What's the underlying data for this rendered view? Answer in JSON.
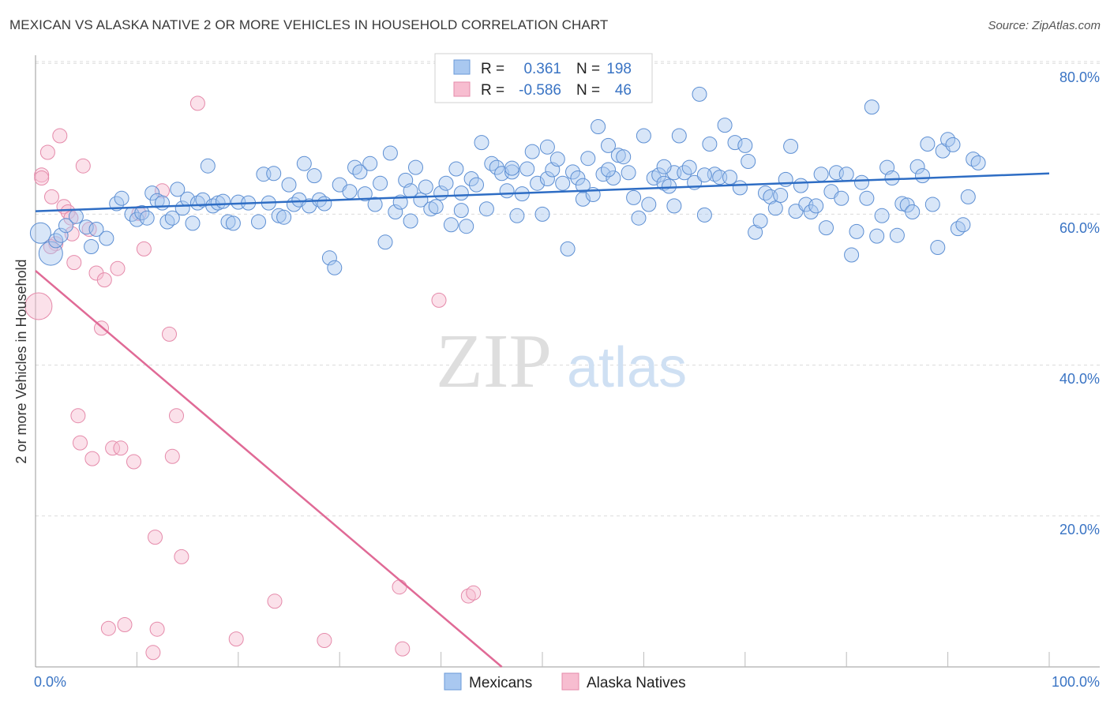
{
  "title": "MEXICAN VS ALASKA NATIVE 2 OR MORE VEHICLES IN HOUSEHOLD CORRELATION CHART",
  "source": "Source: ZipAtlas.com",
  "watermark": {
    "zip": "ZIP",
    "atlas": "atlas"
  },
  "legend": {
    "rows": [
      {
        "r_label": "R =",
        "r_value": "0.361",
        "n_label": "N =",
        "n_value": "198",
        "color": "#a9c8f0",
        "stroke": "#6a9ad8"
      },
      {
        "r_label": "R =",
        "r_value": "-0.586",
        "n_label": "N =",
        "n_value": "46",
        "color": "#f7bdd0",
        "stroke": "#e58aaa"
      }
    ]
  },
  "bottom_legend": [
    {
      "label": "Mexicans",
      "color": "#a9c8f0",
      "stroke": "#6a9ad8"
    },
    {
      "label": "Alaska Natives",
      "color": "#f7bdd0",
      "stroke": "#e58aaa"
    }
  ],
  "chart_data": {
    "type": "scatter",
    "title": "MEXICAN VS ALASKA NATIVE 2 OR MORE VEHICLES IN HOUSEHOLD CORRELATION CHART",
    "xlabel": "",
    "ylabel": "2 or more Vehicles in Household",
    "xlim": [
      0,
      100
    ],
    "ylim": [
      0,
      83
    ],
    "x_tick_labels": [
      "0.0%",
      "100.0%"
    ],
    "y_ticks": [
      20,
      40,
      60,
      80
    ],
    "y_tick_labels": [
      "20.0%",
      "40.0%",
      "60.0%",
      "80.0%"
    ],
    "grid": "horizontal dashed",
    "colors": {
      "mexicans": "#3a74c4",
      "alaska": "#e06a96"
    },
    "series": [
      {
        "name": "Mexicans",
        "trend": {
          "x": [
            0,
            100
          ],
          "y": [
            60.4,
            65.4
          ]
        },
        "points": [
          [
            0.5,
            57.5
          ],
          [
            1.5,
            54.8
          ],
          [
            2,
            56.5
          ],
          [
            2.5,
            57.2
          ],
          [
            3,
            58.5
          ],
          [
            4,
            59.7
          ],
          [
            5,
            58.3
          ],
          [
            5.5,
            55.7
          ],
          [
            6,
            58
          ],
          [
            7,
            56.8
          ],
          [
            8,
            61.4
          ],
          [
            8.5,
            62.1
          ],
          [
            9.5,
            60
          ],
          [
            10,
            59.3
          ],
          [
            10.5,
            60.2
          ],
          [
            11,
            59.5
          ],
          [
            11.5,
            62.8
          ],
          [
            12,
            61.8
          ],
          [
            12.5,
            61.5
          ],
          [
            13,
            59
          ],
          [
            13.5,
            59.5
          ],
          [
            14,
            63.3
          ],
          [
            14.5,
            60.8
          ],
          [
            15,
            62
          ],
          [
            15.5,
            58.8
          ],
          [
            16,
            61.5
          ],
          [
            16.5,
            61.9
          ],
          [
            17,
            66.4
          ],
          [
            17.5,
            61.1
          ],
          [
            18,
            61.5
          ],
          [
            18.5,
            61.7
          ],
          [
            19,
            59
          ],
          [
            19.5,
            58.8
          ],
          [
            20,
            61.6
          ],
          [
            21,
            61.5
          ],
          [
            22,
            59
          ],
          [
            22.5,
            65.3
          ],
          [
            23,
            61.5
          ],
          [
            23.5,
            65.4
          ],
          [
            24,
            59.8
          ],
          [
            24.5,
            59.6
          ],
          [
            25,
            63.9
          ],
          [
            25.5,
            61.3
          ],
          [
            26,
            61.9
          ],
          [
            26.5,
            66.7
          ],
          [
            27,
            61.1
          ],
          [
            27.5,
            65.1
          ],
          [
            28,
            61.9
          ],
          [
            28.5,
            61.4
          ],
          [
            29,
            54.2
          ],
          [
            29.5,
            52.9
          ],
          [
            30,
            63.9
          ],
          [
            31,
            63
          ],
          [
            31.5,
            66.2
          ],
          [
            32,
            65.6
          ],
          [
            32.5,
            62.7
          ],
          [
            33,
            66.7
          ],
          [
            33.5,
            61.3
          ],
          [
            34,
            64.1
          ],
          [
            34.5,
            56.3
          ],
          [
            35,
            68.1
          ],
          [
            35.5,
            60.3
          ],
          [
            36,
            61.6
          ],
          [
            36.5,
            64.5
          ],
          [
            37,
            59.1
          ],
          [
            37.5,
            66.2
          ],
          [
            38,
            61.9
          ],
          [
            38.5,
            63.6
          ],
          [
            39,
            60.7
          ],
          [
            39.5,
            61
          ],
          [
            40,
            62.8
          ],
          [
            40.5,
            64.1
          ],
          [
            41,
            58.6
          ],
          [
            41.5,
            66
          ],
          [
            42,
            62.8
          ],
          [
            42.5,
            58.4
          ],
          [
            43,
            64.7
          ],
          [
            43.5,
            63.9
          ],
          [
            44,
            69.5
          ],
          [
            44.5,
            60.7
          ],
          [
            45,
            66.7
          ],
          [
            45.5,
            66.2
          ],
          [
            46,
            65.4
          ],
          [
            46.5,
            63.1
          ],
          [
            47,
            65.6
          ],
          [
            47.5,
            59.8
          ],
          [
            48,
            62.7
          ],
          [
            48.5,
            66
          ],
          [
            49,
            68.3
          ],
          [
            49.5,
            64.1
          ],
          [
            50,
            60
          ],
          [
            50.5,
            64.7
          ],
          [
            51,
            65.9
          ],
          [
            51.5,
            67.3
          ],
          [
            52,
            64.1
          ],
          [
            52.5,
            55.4
          ],
          [
            53,
            65.6
          ],
          [
            53.5,
            64.8
          ],
          [
            54,
            62
          ],
          [
            54.5,
            67.4
          ],
          [
            55,
            62.6
          ],
          [
            55.5,
            71.6
          ],
          [
            56,
            65.3
          ],
          [
            56.5,
            69.1
          ],
          [
            57,
            64.8
          ],
          [
            57.5,
            67.8
          ],
          [
            58,
            67.6
          ],
          [
            58.5,
            65.5
          ],
          [
            59,
            62.2
          ],
          [
            59.5,
            59.5
          ],
          [
            60,
            70.4
          ],
          [
            60.5,
            61.3
          ],
          [
            61,
            64.8
          ],
          [
            61.5,
            65.2
          ],
          [
            62,
            64.1
          ],
          [
            62.5,
            63.7
          ],
          [
            63,
            65.5
          ],
          [
            63.5,
            70.4
          ],
          [
            64,
            65.5
          ],
          [
            64.5,
            66.2
          ],
          [
            65,
            64.2
          ],
          [
            65.5,
            75.9
          ],
          [
            66,
            59.9
          ],
          [
            66.5,
            69.3
          ],
          [
            67,
            65.3
          ],
          [
            67.5,
            64.9
          ],
          [
            68,
            71.8
          ],
          [
            68.5,
            64.9
          ],
          [
            69,
            69.5
          ],
          [
            69.5,
            63.5
          ],
          [
            70,
            69.1
          ],
          [
            71,
            57.6
          ],
          [
            71.5,
            59.1
          ],
          [
            72,
            62.8
          ],
          [
            72.5,
            62.3
          ],
          [
            73,
            60.8
          ],
          [
            73.5,
            62.5
          ],
          [
            74,
            64.6
          ],
          [
            74.5,
            69
          ],
          [
            75,
            60.4
          ],
          [
            75.5,
            63.8
          ],
          [
            76,
            61.3
          ],
          [
            76.5,
            60.3
          ],
          [
            77,
            61.1
          ],
          [
            77.5,
            65.3
          ],
          [
            78,
            58.2
          ],
          [
            78.5,
            63
          ],
          [
            79,
            65.5
          ],
          [
            79.5,
            62.1
          ],
          [
            80,
            65.3
          ],
          [
            80.5,
            54.6
          ],
          [
            81,
            57.7
          ],
          [
            81.5,
            64.2
          ],
          [
            82,
            62.1
          ],
          [
            82.5,
            74.2
          ],
          [
            83,
            57.1
          ],
          [
            83.5,
            59.8
          ],
          [
            84,
            66.2
          ],
          [
            84.5,
            64.8
          ],
          [
            85,
            57.2
          ],
          [
            85.5,
            61.4
          ],
          [
            86,
            61.2
          ],
          [
            86.5,
            60.3
          ],
          [
            87,
            66.3
          ],
          [
            87.5,
            65.1
          ],
          [
            88,
            69.3
          ],
          [
            88.5,
            61.3
          ],
          [
            89,
            55.6
          ],
          [
            89.5,
            68.4
          ],
          [
            90,
            69.9
          ],
          [
            90.5,
            69.2
          ],
          [
            91,
            58.1
          ],
          [
            91.5,
            58.6
          ],
          [
            92,
            62.3
          ],
          [
            92.5,
            67.3
          ],
          [
            93,
            66.8
          ],
          [
            62,
            66.3
          ],
          [
            66,
            65.2
          ],
          [
            70.3,
            67
          ],
          [
            42,
            60.5
          ],
          [
            47,
            66.1
          ],
          [
            50.5,
            68.9
          ],
          [
            56.5,
            65.9
          ],
          [
            37,
            63.1
          ],
          [
            63,
            61.1
          ],
          [
            54,
            63.8
          ]
        ]
      },
      {
        "name": "Alaska Natives",
        "trend": {
          "x": [
            0,
            46
          ],
          "y": [
            52.5,
            0
          ]
        },
        "points": [
          [
            0.3,
            47.8
          ],
          [
            0.6,
            65.2
          ],
          [
            1.2,
            68.2
          ],
          [
            1.6,
            62.3
          ],
          [
            2,
            56.1
          ],
          [
            2.4,
            70.4
          ],
          [
            2.8,
            61
          ],
          [
            3.2,
            60.3
          ],
          [
            3.6,
            57.4
          ],
          [
            3.8,
            53.6
          ],
          [
            4.2,
            33.3
          ],
          [
            4.4,
            29.7
          ],
          [
            4.7,
            66.4
          ],
          [
            5.3,
            58
          ],
          [
            5.6,
            27.6
          ],
          [
            6,
            52.2
          ],
          [
            6.5,
            44.9
          ],
          [
            6.8,
            51.3
          ],
          [
            7.2,
            5.1
          ],
          [
            7.6,
            29
          ],
          [
            8.1,
            52.8
          ],
          [
            8.4,
            29
          ],
          [
            8.8,
            5.6
          ],
          [
            9.7,
            27.2
          ],
          [
            10.2,
            60.1
          ],
          [
            10.7,
            55.4
          ],
          [
            11.6,
            1.9
          ],
          [
            11.8,
            17.2
          ],
          [
            12,
            5
          ],
          [
            12.5,
            63.1
          ],
          [
            13.2,
            44.1
          ],
          [
            13.5,
            27.9
          ],
          [
            13.9,
            33.3
          ],
          [
            14.4,
            14.6
          ],
          [
            16,
            74.7
          ],
          [
            19.8,
            3.7
          ],
          [
            23.6,
            8.7
          ],
          [
            28.5,
            3.5
          ],
          [
            35.9,
            10.6
          ],
          [
            36.2,
            2.4
          ],
          [
            39.8,
            48.6
          ],
          [
            42.7,
            9.4
          ],
          [
            43.2,
            9.8
          ],
          [
            0.6,
            64.8
          ],
          [
            1.5,
            55.7
          ],
          [
            3.5,
            59.5
          ]
        ]
      }
    ]
  }
}
